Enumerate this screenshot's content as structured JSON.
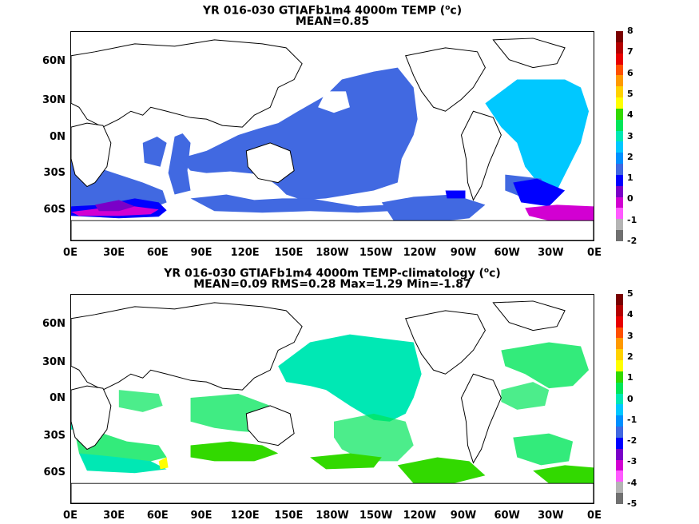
{
  "panels": [
    {
      "title_line1": "YR 016-030 GTIAFb1m4 4000m TEMP (",
      "title_sup": "o",
      "title_unit": "c)",
      "title_line2": "MEAN=0.85",
      "colorbar_labels": [
        "8",
        "7",
        "6",
        "5",
        "4",
        "3",
        "2",
        "1",
        "0",
        "-1",
        "-2"
      ]
    },
    {
      "title_line1": "YR 016-030 GTIAFb1m4 4000m TEMP-climatology (",
      "title_sup": "o",
      "title_unit": "c)",
      "title_line2": "MEAN=0.09   RMS=0.28   Max=1.29   Min=-1.87",
      "colorbar_labels": [
        "5",
        "4",
        "3",
        "2",
        "1",
        "0",
        "-1",
        "-2",
        "-3",
        "-4",
        "-5"
      ]
    }
  ],
  "axes": {
    "lat_labels": [
      "60N",
      "30N",
      "0N",
      "30S",
      "60S"
    ],
    "lon_labels": [
      "0E",
      "30E",
      "60E",
      "90E",
      "120E",
      "150E",
      "180W",
      "150W",
      "120W",
      "90W",
      "60W",
      "30W",
      "0E"
    ]
  },
  "colorbar_colors": [
    "#7a0000",
    "#b40000",
    "#e80000",
    "#ff5000",
    "#ff9a00",
    "#ffd200",
    "#ffff00",
    "#32d900",
    "#00e65a",
    "#00e8b4",
    "#00c8ff",
    "#0090ff",
    "#4169e1",
    "#0000ff",
    "#7a00c8",
    "#d200d2",
    "#ff5aff",
    "#b4b4b4",
    "#707070"
  ]
}
